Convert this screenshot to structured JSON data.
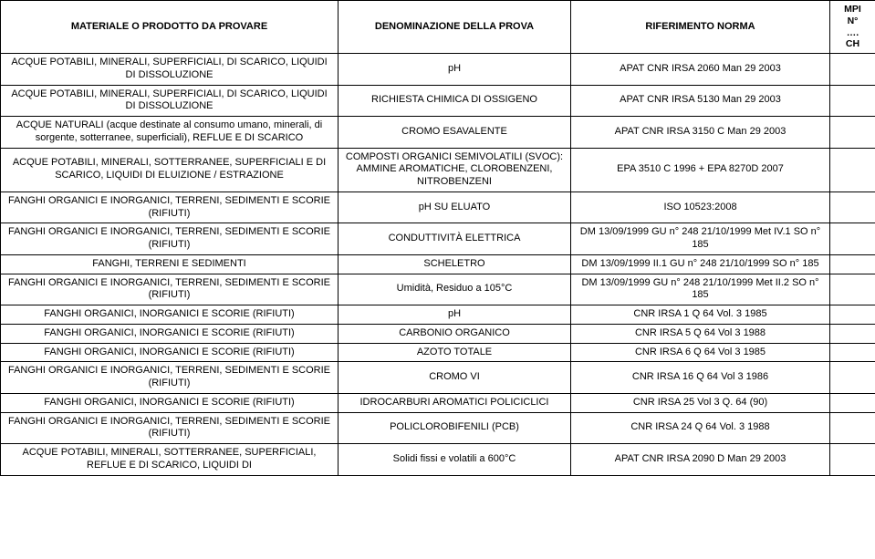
{
  "headers": {
    "material": "MATERIALE O PRODOTTO DA PROVARE",
    "prova": "DENOMINAZIONE DELLA PROVA",
    "norma": "RIFERIMENTO NORMA",
    "mpi_line1": "MPI",
    "mpi_line2": "N°",
    "mpi_line3": "….",
    "mpi_line4": "CH"
  },
  "rows": [
    {
      "material": "ACQUE POTABILI, MINERALI, SUPERFICIALI, DI SCARICO, LIQUIDI DI DISSOLUZIONE",
      "prova": "pH",
      "norma": "APAT CNR IRSA 2060 Man 29 2003",
      "mpi": ""
    },
    {
      "material": "ACQUE POTABILI, MINERALI, SUPERFICIALI, DI SCARICO, LIQUIDI DI DISSOLUZIONE",
      "prova": "RICHIESTA CHIMICA DI OSSIGENO",
      "norma": "APAT CNR IRSA 5130 Man 29 2003",
      "mpi": ""
    },
    {
      "material": "ACQUE NATURALI (acque destinate al consumo umano, minerali, di sorgente, sotterranee, superficiali), REFLUE E DI SCARICO",
      "prova": "CROMO ESAVALENTE",
      "norma": "APAT CNR IRSA 3150 C Man 29 2003",
      "mpi": ""
    },
    {
      "material": "ACQUE POTABILI, MINERALI, SOTTERRANEE, SUPERFICIALI E DI SCARICO, LIQUIDI DI ELUIZIONE / ESTRAZIONE",
      "prova": "COMPOSTI ORGANICI SEMIVOLATILI (SVOC): AMMINE AROMATICHE, CLOROBENZENI, NITROBENZENI",
      "norma": "EPA 3510 C 1996 + EPA 8270D 2007",
      "mpi": ""
    },
    {
      "material": "FANGHI ORGANICI E INORGANICI, TERRENI, SEDIMENTI E SCORIE (RIFIUTI)",
      "prova": "pH SU ELUATO",
      "norma": "ISO 10523:2008",
      "mpi": ""
    },
    {
      "material": "FANGHI ORGANICI E INORGANICI, TERRENI, SEDIMENTI E SCORIE (RIFIUTI)",
      "prova": "CONDUTTIVITÀ ELETTRICA",
      "norma": "DM 13/09/1999 GU n° 248 21/10/1999 Met IV.1 SO n° 185",
      "mpi": ""
    },
    {
      "material": "FANGHI, TERRENI E SEDIMENTI",
      "prova": "SCHELETRO",
      "norma": "DM 13/09/1999 II.1 GU n° 248 21/10/1999 SO n° 185",
      "mpi": ""
    },
    {
      "material": "FANGHI ORGANICI E INORGANICI, TERRENI, SEDIMENTI E SCORIE (RIFIUTI)",
      "prova": "Umidità, Residuo a 105°C",
      "norma": "DM 13/09/1999 GU n° 248 21/10/1999 Met II.2 SO n° 185",
      "mpi": ""
    },
    {
      "material": "FANGHI ORGANICI, INORGANICI E SCORIE (RIFIUTI)",
      "prova": "pH",
      "norma": "CNR IRSA 1 Q 64 Vol. 3 1985",
      "mpi": ""
    },
    {
      "material": "FANGHI ORGANICI, INORGANICI E SCORIE (RIFIUTI)",
      "prova": "CARBONIO ORGANICO",
      "norma": "CNR IRSA 5 Q 64 Vol 3 1988",
      "mpi": ""
    },
    {
      "material": "FANGHI ORGANICI, INORGANICI E SCORIE (RIFIUTI)",
      "prova": "AZOTO TOTALE",
      "norma": "CNR IRSA 6 Q 64 Vol 3 1985",
      "mpi": ""
    },
    {
      "material": "FANGHI ORGANICI E INORGANICI, TERRENI, SEDIMENTI E SCORIE (RIFIUTI)",
      "prova": "CROMO VI",
      "norma": "CNR IRSA 16 Q 64 Vol 3 1986",
      "mpi": ""
    },
    {
      "material": "FANGHI ORGANICI, INORGANICI E SCORIE (RIFIUTI)",
      "prova": "IDROCARBURI AROMATICI POLICICLICI",
      "norma": "CNR IRSA 25 Vol 3 Q. 64 (90)",
      "mpi": ""
    },
    {
      "material": "FANGHI ORGANICI E INORGANICI, TERRENI, SEDIMENTI E SCORIE (RIFIUTI)",
      "prova": "POLICLOROBIFENILI (PCB)",
      "norma": "CNR IRSA 24 Q 64 Vol. 3 1988",
      "mpi": ""
    },
    {
      "material": "ACQUE POTABILI, MINERALI, SOTTERRANEE, SUPERFICIALI, REFLUE E DI SCARICO, LIQUIDI DI",
      "prova": "Solidi fissi e volatili a 600°C",
      "norma": "APAT CNR IRSA 2090 D Man 29 2003",
      "mpi": ""
    }
  ]
}
